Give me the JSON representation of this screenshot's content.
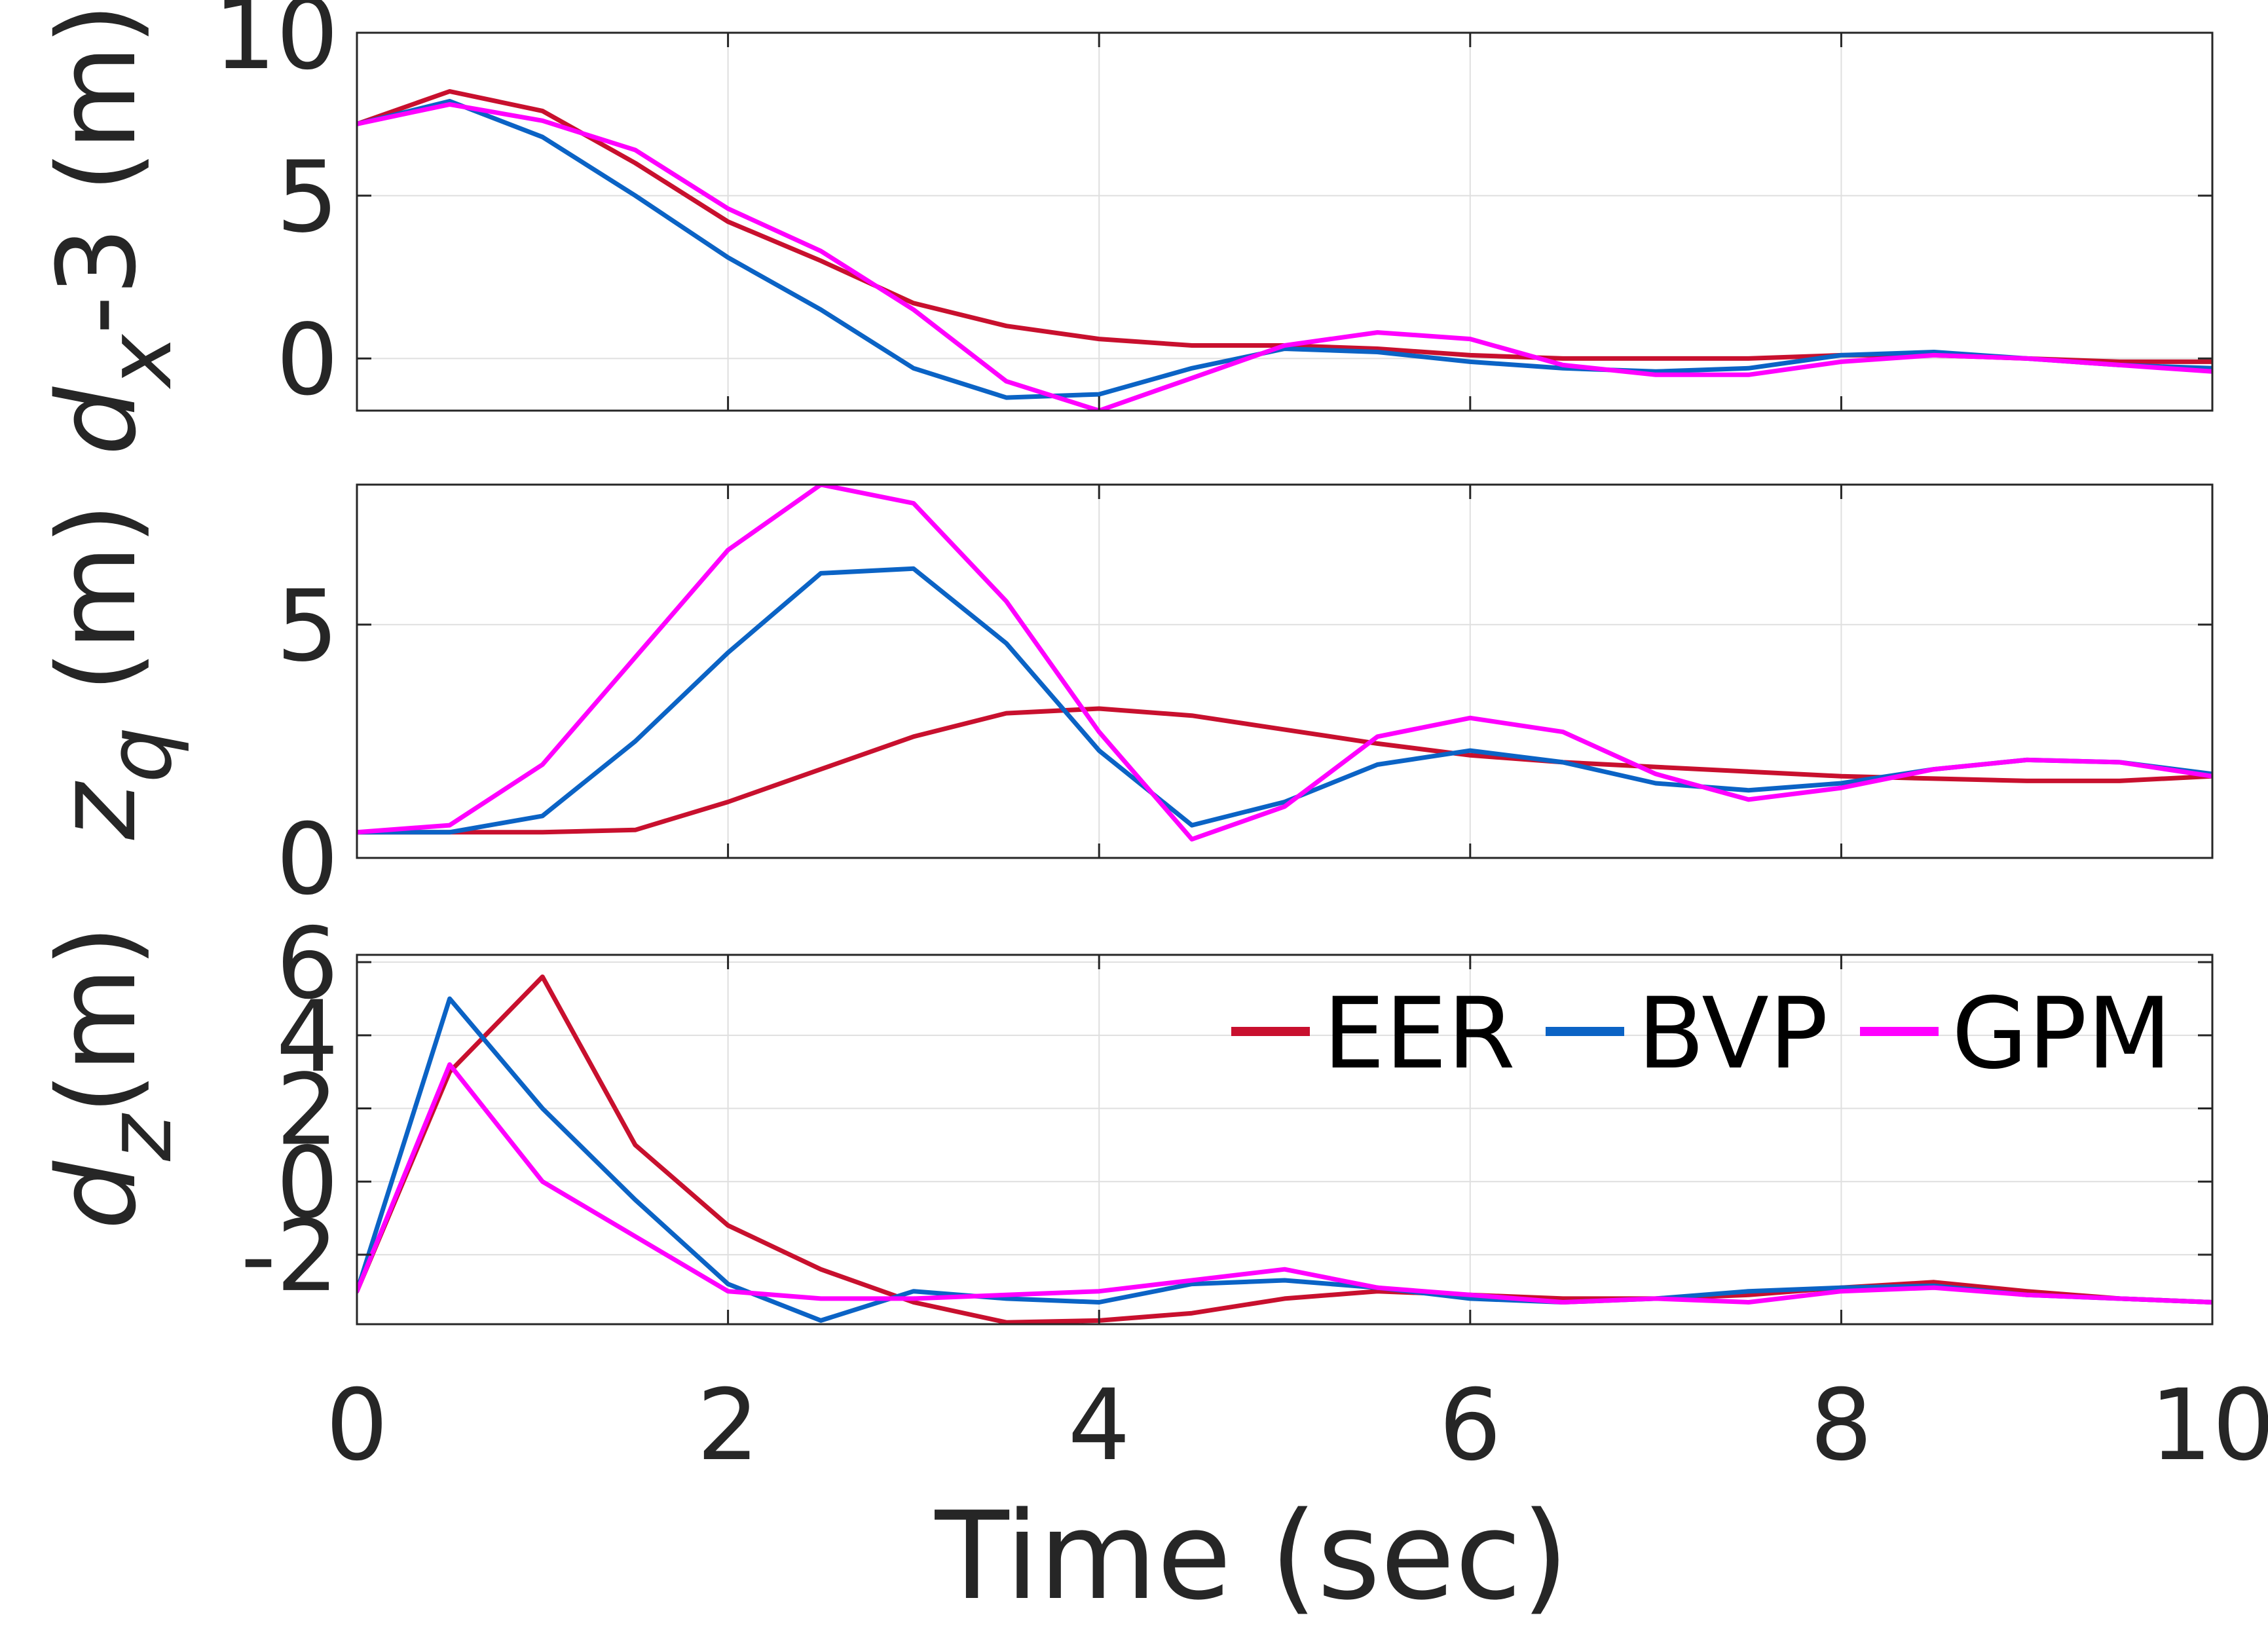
{
  "chart_data": {
    "type": "line",
    "layout": "3 stacked subplots sharing x-axis",
    "xlabel": "Time (sec)",
    "xlim": [
      0,
      10
    ],
    "xticks": [
      "0",
      "2",
      "4",
      "6",
      "8",
      "10"
    ],
    "grid": true,
    "legend": {
      "entries": [
        "EER",
        "BVP",
        "GPM"
      ],
      "placement": "top-right of bottom subplot"
    },
    "colors": {
      "EER": "#c8102e",
      "BVP": "#0b63c5",
      "GPM": "#ff00ff"
    },
    "x": [
      0,
      0.5,
      1,
      1.5,
      2,
      2.5,
      3,
      3.5,
      4,
      4.5,
      5,
      5.5,
      6,
      6.5,
      7,
      7.5,
      8,
      8.5,
      9,
      9.5,
      10
    ],
    "panels": [
      {
        "ylabel_main": "d",
        "ylabel_sub": "x",
        "ylabel_rest": "-3 (m)",
        "ylim": [
          -1.6,
          10
        ],
        "yticks": [
          "0",
          "5",
          "10"
        ],
        "ytick_values": [
          0,
          5,
          10
        ],
        "series": [
          {
            "name": "EER",
            "values": [
              7.2,
              8.2,
              7.6,
              6.0,
              4.2,
              3.0,
              1.7,
              1.0,
              0.6,
              0.4,
              0.4,
              0.3,
              0.1,
              0.0,
              0.0,
              0.0,
              0.1,
              0.1,
              0.0,
              -0.1,
              -0.1
            ]
          },
          {
            "name": "BVP",
            "values": [
              7.2,
              7.9,
              6.8,
              5.0,
              3.1,
              1.5,
              -0.3,
              -1.2,
              -1.1,
              -0.3,
              0.3,
              0.2,
              -0.1,
              -0.3,
              -0.4,
              -0.3,
              0.1,
              0.2,
              0.0,
              -0.2,
              -0.3
            ]
          },
          {
            "name": "GPM",
            "values": [
              7.2,
              7.8,
              7.3,
              6.4,
              4.6,
              3.3,
              1.5,
              -0.7,
              -1.6,
              -0.6,
              0.4,
              0.8,
              0.6,
              -0.2,
              -0.5,
              -0.5,
              -0.1,
              0.1,
              0.0,
              -0.2,
              -0.4
            ]
          }
        ]
      },
      {
        "ylabel_main": "z",
        "ylabel_sub": "q",
        "ylabel_rest": " (m)",
        "ylim": [
          0,
          8
        ],
        "yticks": [
          "0",
          "5"
        ],
        "ytick_values": [
          0,
          5
        ],
        "series": [
          {
            "name": "EER",
            "values": [
              0.55,
              0.55,
              0.55,
              0.6,
              1.2,
              1.9,
              2.6,
              3.1,
              3.2,
              3.05,
              2.75,
              2.45,
              2.2,
              2.05,
              1.95,
              1.85,
              1.75,
              1.7,
              1.65,
              1.65,
              1.75
            ]
          },
          {
            "name": "BVP",
            "values": [
              0.55,
              0.55,
              0.9,
              2.5,
              4.4,
              6.1,
              6.2,
              4.6,
              2.3,
              0.7,
              1.2,
              2.0,
              2.3,
              2.05,
              1.6,
              1.45,
              1.6,
              1.9,
              2.1,
              2.05,
              1.8
            ]
          },
          {
            "name": "GPM",
            "values": [
              0.55,
              0.7,
              2.0,
              4.3,
              6.6,
              8.0,
              7.6,
              5.5,
              2.7,
              0.4,
              1.1,
              2.6,
              3.0,
              2.7,
              1.8,
              1.25,
              1.5,
              1.9,
              2.1,
              2.05,
              1.75
            ]
          }
        ]
      },
      {
        "ylabel_main": "d",
        "ylabel_sub": "z",
        "ylabel_rest": "(m)",
        "ylim": [
          -3.9,
          6.2
        ],
        "yticks": [
          "-2",
          "0",
          "2",
          "4",
          "6"
        ],
        "ytick_values": [
          -2,
          0,
          2,
          4,
          6
        ],
        "series": [
          {
            "name": "EER",
            "values": [
              -3.0,
              3.0,
              5.6,
              1.0,
              -1.2,
              -2.4,
              -3.3,
              -3.85,
              -3.8,
              -3.6,
              -3.2,
              -3.0,
              -3.1,
              -3.2,
              -3.2,
              -3.1,
              -2.9,
              -2.75,
              -3.0,
              -3.2,
              -3.3
            ]
          },
          {
            "name": "BVP",
            "values": [
              -3.0,
              5.0,
              2.0,
              -0.5,
              -2.8,
              -3.8,
              -3.0,
              -3.2,
              -3.3,
              -2.8,
              -2.7,
              -2.9,
              -3.2,
              -3.3,
              -3.2,
              -3.0,
              -2.9,
              -2.85,
              -3.1,
              -3.2,
              -3.3
            ]
          },
          {
            "name": "GPM",
            "values": [
              -3.0,
              3.2,
              0.0,
              -1.5,
              -3.0,
              -3.2,
              -3.2,
              -3.1,
              -3.0,
              -2.7,
              -2.4,
              -2.9,
              -3.1,
              -3.3,
              -3.2,
              -3.3,
              -3.0,
              -2.9,
              -3.1,
              -3.2,
              -3.3
            ]
          }
        ]
      }
    ]
  }
}
